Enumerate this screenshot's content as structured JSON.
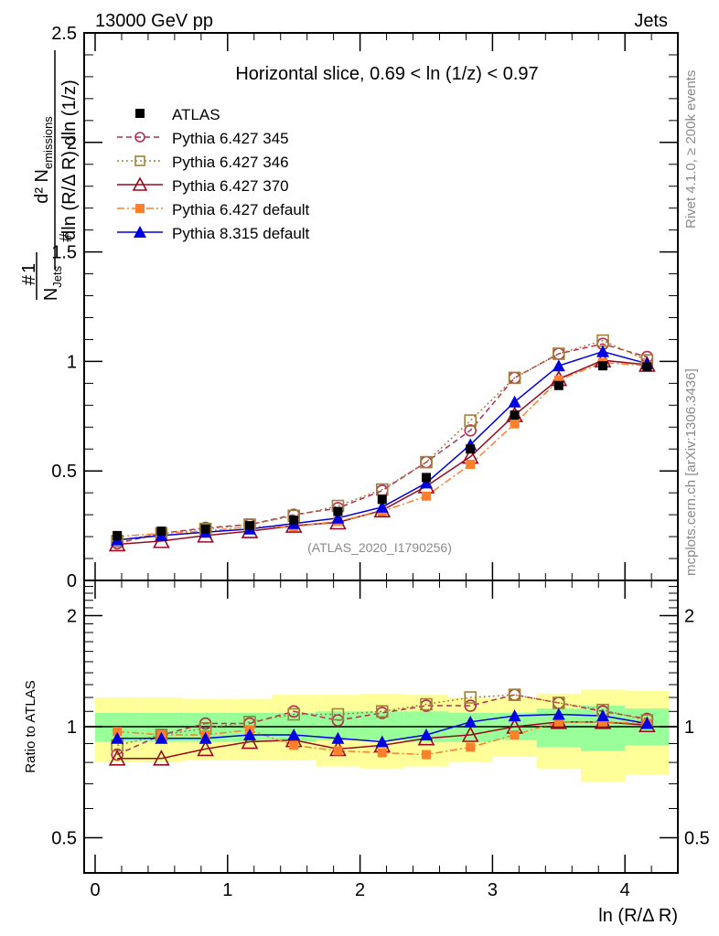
{
  "header": {
    "left": "13000 GeV pp",
    "right": "Jets"
  },
  "side_labels": {
    "rivet": "Rivet 4.1.0, ≥ 200k events",
    "mcplots": "mcplots.cern.ch [arXiv:1306.3436]"
  },
  "chart_data": [
    {
      "type": "line",
      "panel": "main",
      "title": "Horizontal slice, 0.69 < ln (1/z) < 0.97",
      "watermark": "(ATLAS_2020_I1790256)",
      "xlabel": "",
      "ylabel": "1/N_jets d²N_emissions / dln(R/ΔR) dln(1/z)",
      "xlim": [
        -0.08,
        4.4
      ],
      "ylim": [
        0,
        2.5
      ],
      "yticks": [
        {
          "v": 0,
          "label": "0"
        },
        {
          "v": 0.5,
          "label": "0.5"
        },
        {
          "v": 1,
          "label": "1"
        },
        {
          "v": 1.5,
          "label": "1.5"
        },
        {
          "v": 2,
          "label": "2"
        },
        {
          "v": 2.5,
          "label": "2.5"
        }
      ],
      "legend_position": "top-left",
      "x": [
        0.167,
        0.5,
        0.833,
        1.167,
        1.5,
        1.833,
        2.167,
        2.5,
        2.833,
        3.167,
        3.5,
        3.833,
        4.167
      ],
      "series": [
        {
          "name": "ATLAS",
          "color": "#000000",
          "marker": "filled-square",
          "line": "none",
          "values": [
            0.205,
            0.225,
            0.235,
            0.25,
            0.275,
            0.315,
            0.37,
            0.47,
            0.6,
            0.755,
            0.89,
            0.98,
            0.975
          ]
        },
        {
          "name": "Pythia 6.427 345",
          "color": "#b03050",
          "marker": "open-circle",
          "line": "dashed",
          "values": [
            0.17,
            0.215,
            0.24,
            0.255,
            0.3,
            0.33,
            0.41,
            0.54,
            0.685,
            0.925,
            1.035,
            1.08,
            1.02
          ]
        },
        {
          "name": "Pythia 6.427 346",
          "color": "#a0803a",
          "marker": "open-square",
          "line": "dotted",
          "values": [
            0.18,
            0.215,
            0.235,
            0.255,
            0.295,
            0.34,
            0.415,
            0.54,
            0.73,
            0.925,
            1.035,
            1.095,
            1.005
          ]
        },
        {
          "name": "Pythia 6.427 370",
          "color": "#9a0a1e",
          "marker": "open-triangle",
          "line": "solid",
          "values": [
            0.165,
            0.18,
            0.205,
            0.225,
            0.25,
            0.265,
            0.32,
            0.43,
            0.565,
            0.755,
            0.92,
            1.005,
            0.985
          ]
        },
        {
          "name": "Pythia 6.427 default",
          "color": "#ff7f2a",
          "marker": "filled-square",
          "line": "dashdot",
          "values": [
            0.2,
            0.215,
            0.225,
            0.245,
            0.245,
            0.27,
            0.315,
            0.385,
            0.53,
            0.715,
            0.915,
            0.995,
            0.98
          ]
        },
        {
          "name": "Pythia 8.315 default",
          "color": "#0000e0",
          "marker": "filled-triangle",
          "line": "solid",
          "values": [
            0.185,
            0.205,
            0.22,
            0.235,
            0.26,
            0.285,
            0.335,
            0.445,
            0.62,
            0.815,
            0.98,
            1.045,
            0.99
          ]
        }
      ]
    },
    {
      "type": "line",
      "panel": "ratio",
      "xlabel": "ln (R/Δ R)",
      "ylabel": "Ratio to ATLAS",
      "xlim": [
        -0.08,
        4.4
      ],
      "ylim": [
        0.4,
        2.5
      ],
      "yscale": "log",
      "yticks": [
        {
          "v": 0.5,
          "label": "0.5"
        },
        {
          "v": 1,
          "label": "1"
        },
        {
          "v": 2,
          "label": "2"
        }
      ],
      "xticks": [
        {
          "v": 0,
          "label": "0"
        },
        {
          "v": 1,
          "label": "1"
        },
        {
          "v": 2,
          "label": "2"
        },
        {
          "v": 3,
          "label": "3"
        },
        {
          "v": 4,
          "label": "4"
        }
      ],
      "bin_edges": [
        0,
        0.333,
        0.667,
        1.0,
        1.333,
        1.667,
        2.0,
        2.333,
        2.667,
        3.0,
        3.333,
        3.667,
        4.0,
        4.333
      ],
      "band_inner": {
        "name": "stat uncertainty",
        "color": "#99ff99",
        "lo": [
          0.91,
          0.91,
          0.91,
          0.91,
          0.91,
          0.92,
          0.92,
          0.91,
          0.91,
          0.92,
          0.88,
          0.86,
          0.89
        ],
        "hi": [
          1.09,
          1.09,
          1.09,
          1.09,
          1.09,
          1.1,
          1.1,
          1.1,
          1.09,
          1.09,
          1.12,
          1.14,
          1.12
        ]
      },
      "band_outer": {
        "name": "total uncertainty",
        "color": "#ffff99",
        "lo": [
          0.8,
          0.8,
          0.81,
          0.81,
          0.81,
          0.78,
          0.77,
          0.78,
          0.8,
          0.83,
          0.77,
          0.71,
          0.74
        ],
        "hi": [
          1.2,
          1.2,
          1.19,
          1.19,
          1.22,
          1.22,
          1.23,
          1.22,
          1.2,
          1.2,
          1.23,
          1.26,
          1.25
        ]
      },
      "x": [
        0.167,
        0.5,
        0.833,
        1.167,
        1.5,
        1.833,
        2.167,
        2.5,
        2.833,
        3.167,
        3.5,
        3.833,
        4.167
      ],
      "series": [
        {
          "name": "Pythia 6.427 345",
          "color": "#b03050",
          "marker": "open-circle",
          "line": "dashed",
          "values": [
            0.84,
            0.95,
            1.02,
            1.02,
            1.1,
            1.04,
            1.09,
            1.14,
            1.14,
            1.22,
            1.16,
            1.1,
            1.05
          ]
        },
        {
          "name": "Pythia 6.427 346",
          "color": "#a0803a",
          "marker": "open-square",
          "line": "dotted",
          "values": [
            0.89,
            0.95,
            0.99,
            1.03,
            1.08,
            1.08,
            1.1,
            1.15,
            1.2,
            1.22,
            1.16,
            1.11,
            1.04
          ]
        },
        {
          "name": "Pythia 6.427 370",
          "color": "#9a0a1e",
          "marker": "open-triangle",
          "line": "solid",
          "values": [
            0.82,
            0.82,
            0.87,
            0.91,
            0.92,
            0.87,
            0.89,
            0.93,
            0.95,
            1.0,
            1.03,
            1.03,
            1.01
          ]
        },
        {
          "name": "Pythia 6.427 default",
          "color": "#ff7f2a",
          "marker": "filled-square",
          "line": "dashdot",
          "values": [
            0.97,
            0.95,
            0.95,
            0.98,
            0.89,
            0.86,
            0.85,
            0.84,
            0.88,
            0.95,
            1.03,
            1.03,
            1.02
          ]
        },
        {
          "name": "Pythia 8.315 default",
          "color": "#0000e0",
          "marker": "filled-triangle",
          "line": "solid",
          "values": [
            0.93,
            0.93,
            0.93,
            0.95,
            0.95,
            0.93,
            0.91,
            0.95,
            1.03,
            1.07,
            1.08,
            1.07,
            1.02
          ]
        }
      ]
    }
  ]
}
